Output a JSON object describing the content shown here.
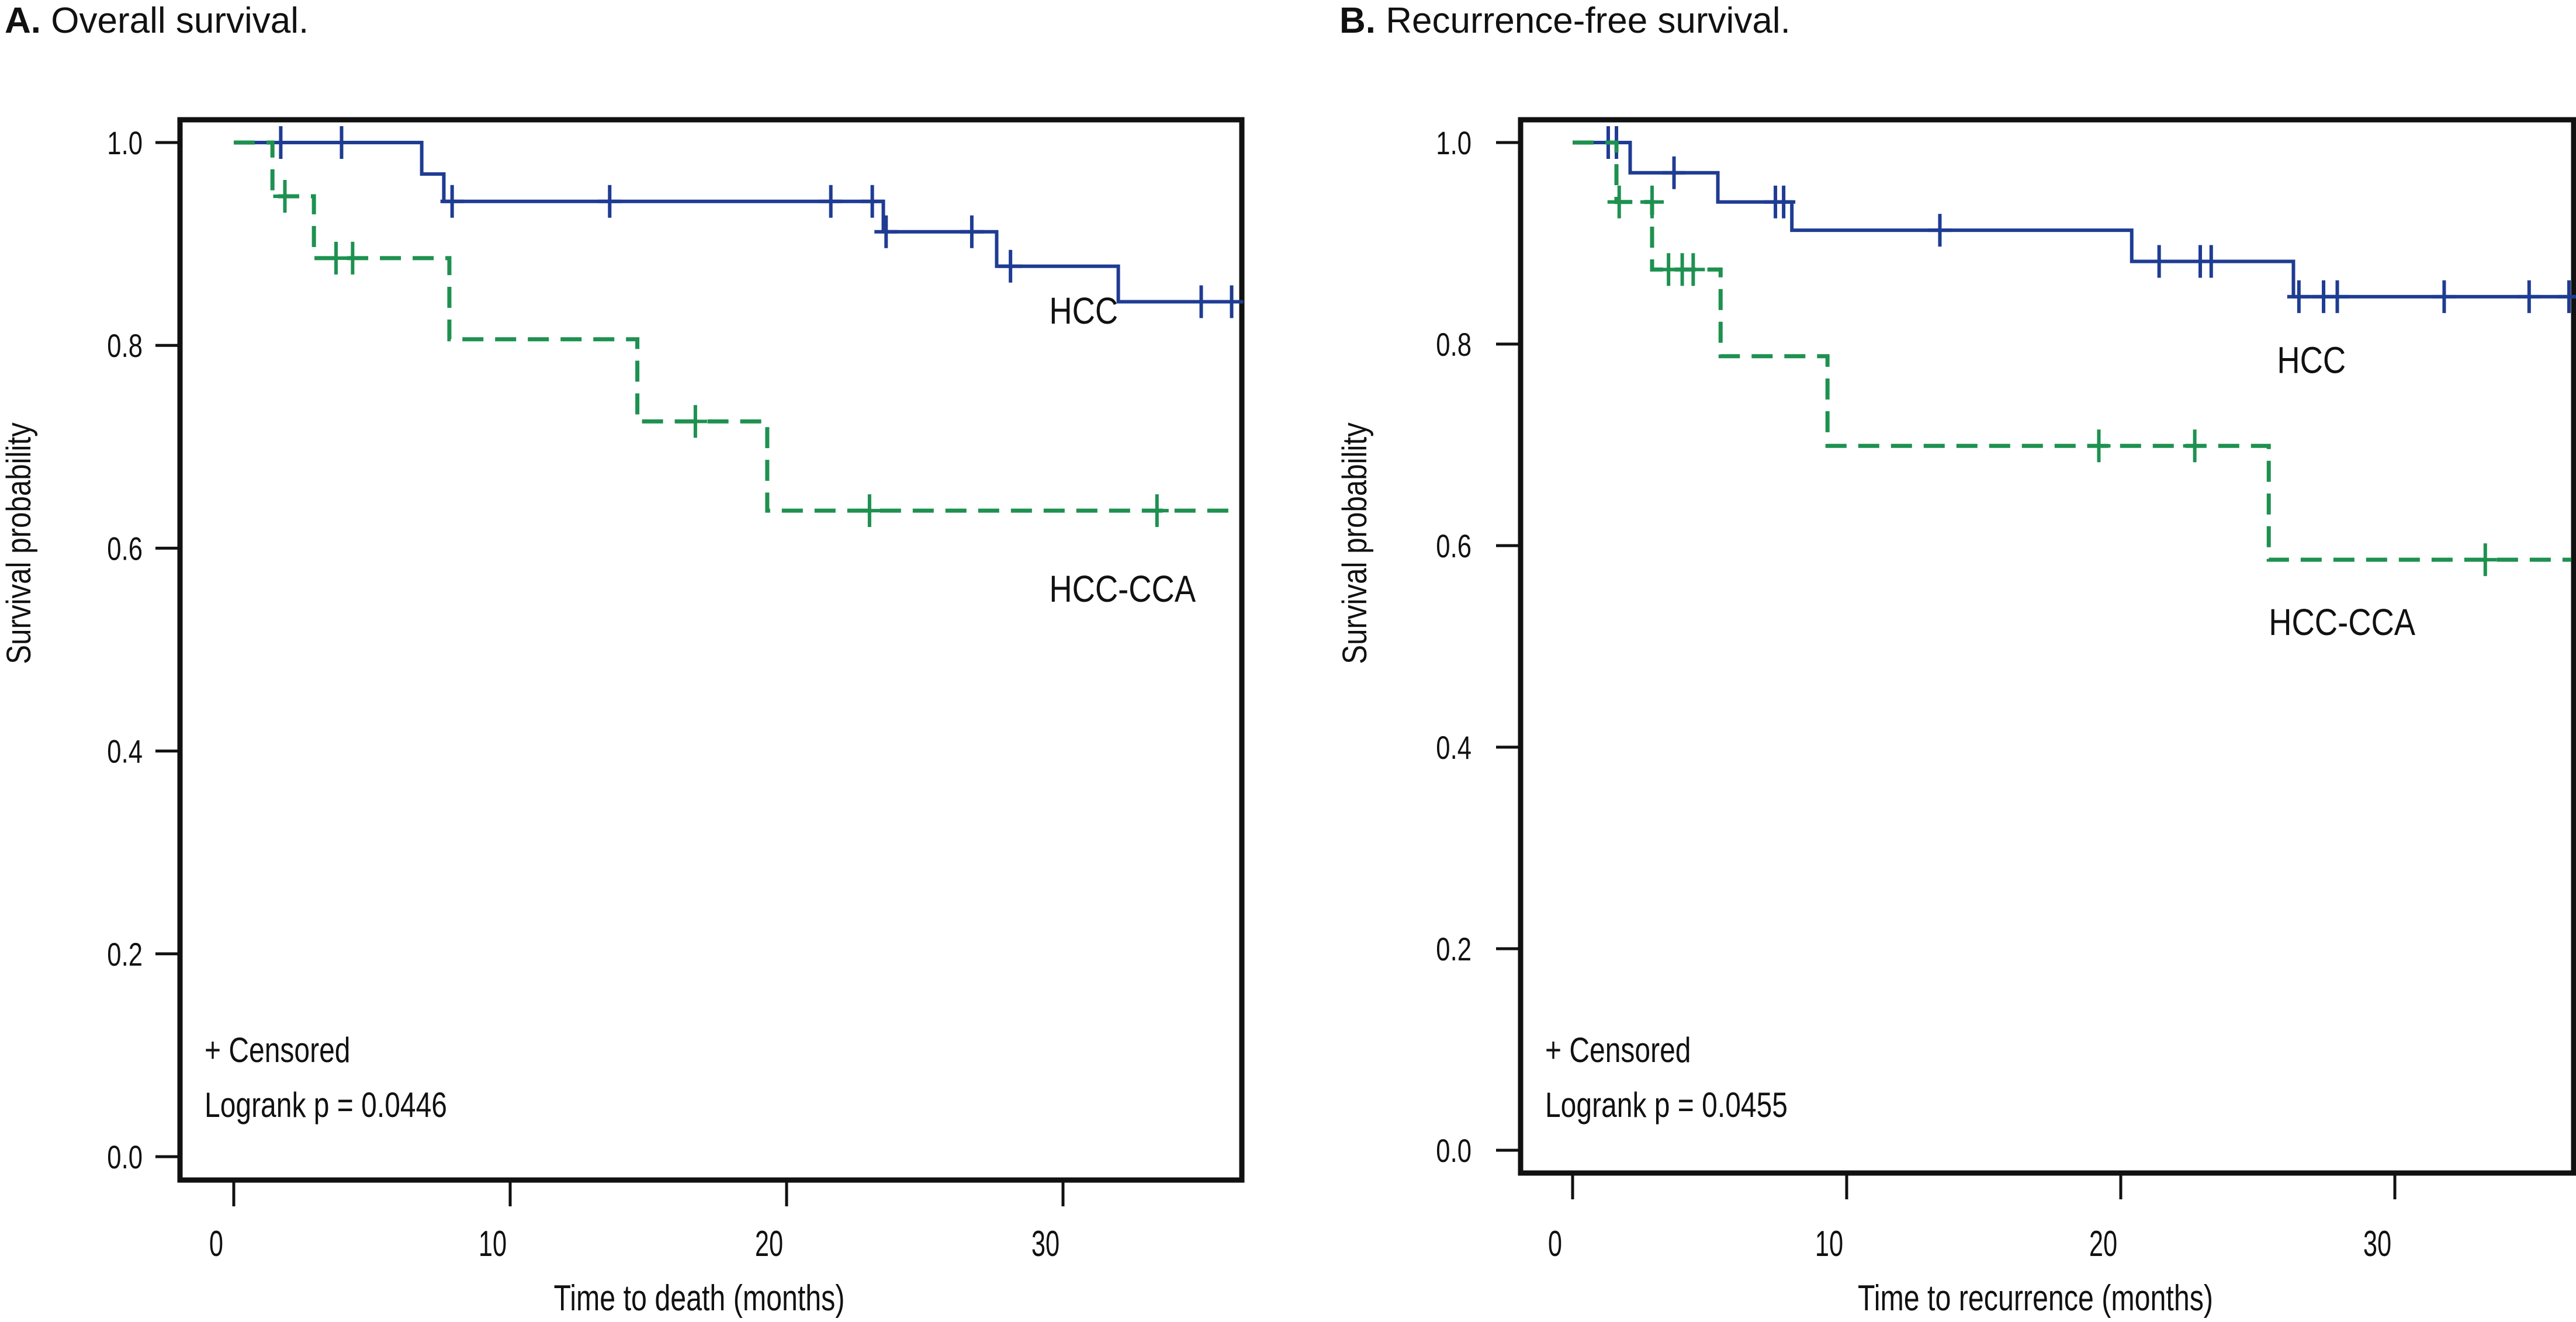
{
  "figure": {
    "panels": [
      {
        "letter": "A.",
        "title": "Overall survival."
      },
      {
        "letter": "B.",
        "title": "Recurrence-free survival."
      }
    ]
  },
  "colors": {
    "hcc": "#1f3c93",
    "hcc_cca": "#1e9150",
    "axis": "#111111"
  },
  "chart_data": [
    {
      "type": "line",
      "subtype": "kaplan-meier step",
      "title": "A. Overall survival.",
      "xlabel": "Time to death (months)",
      "ylabel": "Survival probability",
      "xlim": [
        -2,
        36.5
      ],
      "ylim": [
        -0.04,
        1.06
      ],
      "xticks": [
        0,
        10,
        20,
        30
      ],
      "xtick_labels": [
        "0",
        "10",
        "20",
        "30"
      ],
      "yticks": [
        0.0,
        0.2,
        0.4,
        0.6,
        0.8,
        1.0
      ],
      "ytick_labels": [
        "0.0",
        "0.2",
        "0.4",
        "0.6",
        "0.8",
        "1.0"
      ],
      "grid": false,
      "legend_text": "+ Censored",
      "annotation": "Logrank p = 0.0446",
      "annotation_placement": "bottom-left",
      "series": [
        {
          "name": "HCC",
          "style": "solid",
          "label_at": [
            29.5,
            0.834
          ],
          "steps": [
            [
              0,
              1.0
            ],
            [
              6.8,
              0.969
            ],
            [
              7.6,
              0.942
            ],
            [
              23.5,
              0.912
            ],
            [
              27.6,
              0.878
            ],
            [
              32.0,
              0.843
            ]
          ],
          "end_x": 36.5,
          "censored": [
            [
              1.7,
              1.0
            ],
            [
              3.9,
              1.0
            ],
            [
              7.9,
              0.942
            ],
            [
              13.6,
              0.942
            ],
            [
              21.6,
              0.942
            ],
            [
              23.1,
              0.942
            ],
            [
              23.6,
              0.912
            ],
            [
              26.7,
              0.912
            ],
            [
              28.1,
              0.878
            ],
            [
              35.0,
              0.843
            ],
            [
              36.1,
              0.843
            ]
          ]
        },
        {
          "name": "HCC-CCA",
          "style": "dashed",
          "label_at": [
            29.5,
            0.56
          ],
          "steps": [
            [
              0,
              1.0
            ],
            [
              1.4,
              0.947
            ],
            [
              2.9,
              0.886
            ],
            [
              7.8,
              0.806
            ],
            [
              14.6,
              0.725
            ],
            [
              19.3,
              0.637
            ]
          ],
          "end_x": 36.5,
          "censored": [
            [
              1.85,
              0.947
            ],
            [
              3.7,
              0.886
            ],
            [
              4.3,
              0.886
            ],
            [
              16.7,
              0.725
            ],
            [
              23.0,
              0.637
            ],
            [
              33.4,
              0.637
            ]
          ]
        }
      ]
    },
    {
      "type": "line",
      "subtype": "kaplan-meier step",
      "title": "B. Recurrence-free survival.",
      "xlabel": "Time to recurrence (months)",
      "ylabel": "Survival probability",
      "xlim": [
        -2,
        36.5
      ],
      "ylim": [
        -0.04,
        1.06
      ],
      "xticks": [
        0,
        10,
        20,
        30
      ],
      "xtick_labels": [
        "0",
        "10",
        "20",
        "30"
      ],
      "yticks": [
        0.0,
        0.2,
        0.4,
        0.6,
        0.8,
        1.0
      ],
      "ytick_labels": [
        "0.0",
        "0.2",
        "0.4",
        "0.6",
        "0.8",
        "1.0"
      ],
      "grid": false,
      "legend_text": "+ Censored",
      "annotation": "Logrank p = 0.0455",
      "annotation_placement": "bottom-left",
      "series": [
        {
          "name": "HCC",
          "style": "solid",
          "label_at": [
            25.7,
            0.784
          ],
          "steps": [
            [
              0,
              1.0
            ],
            [
              2.1,
              0.97
            ],
            [
              5.3,
              0.941
            ],
            [
              8.0,
              0.913
            ],
            [
              20.4,
              0.882
            ],
            [
              26.3,
              0.847
            ]
          ],
          "end_x": 36.5,
          "censored": [
            [
              1.3,
              1.0
            ],
            [
              1.6,
              1.0
            ],
            [
              3.7,
              0.97
            ],
            [
              7.4,
              0.941
            ],
            [
              7.7,
              0.941
            ],
            [
              13.4,
              0.913
            ],
            [
              21.4,
              0.882
            ],
            [
              22.9,
              0.882
            ],
            [
              23.3,
              0.882
            ],
            [
              26.5,
              0.847
            ],
            [
              27.4,
              0.847
            ],
            [
              27.9,
              0.847
            ],
            [
              31.8,
              0.847
            ],
            [
              34.9,
              0.847
            ],
            [
              36.4,
              0.847
            ]
          ]
        },
        {
          "name": "HCC-CCA",
          "style": "dashed",
          "label_at": [
            25.4,
            0.524
          ],
          "steps": [
            [
              0,
              1.0
            ],
            [
              1.6,
              0.941
            ],
            [
              2.9,
              0.874
            ],
            [
              5.4,
              0.788
            ],
            [
              9.3,
              0.699
            ],
            [
              25.4,
              0.586
            ]
          ],
          "end_x": 36.5,
          "censored": [
            [
              1.7,
              0.941
            ],
            [
              2.9,
              0.941
            ],
            [
              3.5,
              0.874
            ],
            [
              4.0,
              0.874
            ],
            [
              4.4,
              0.874
            ],
            [
              19.2,
              0.699
            ],
            [
              22.7,
              0.699
            ],
            [
              33.3,
              0.586
            ]
          ]
        }
      ]
    }
  ]
}
